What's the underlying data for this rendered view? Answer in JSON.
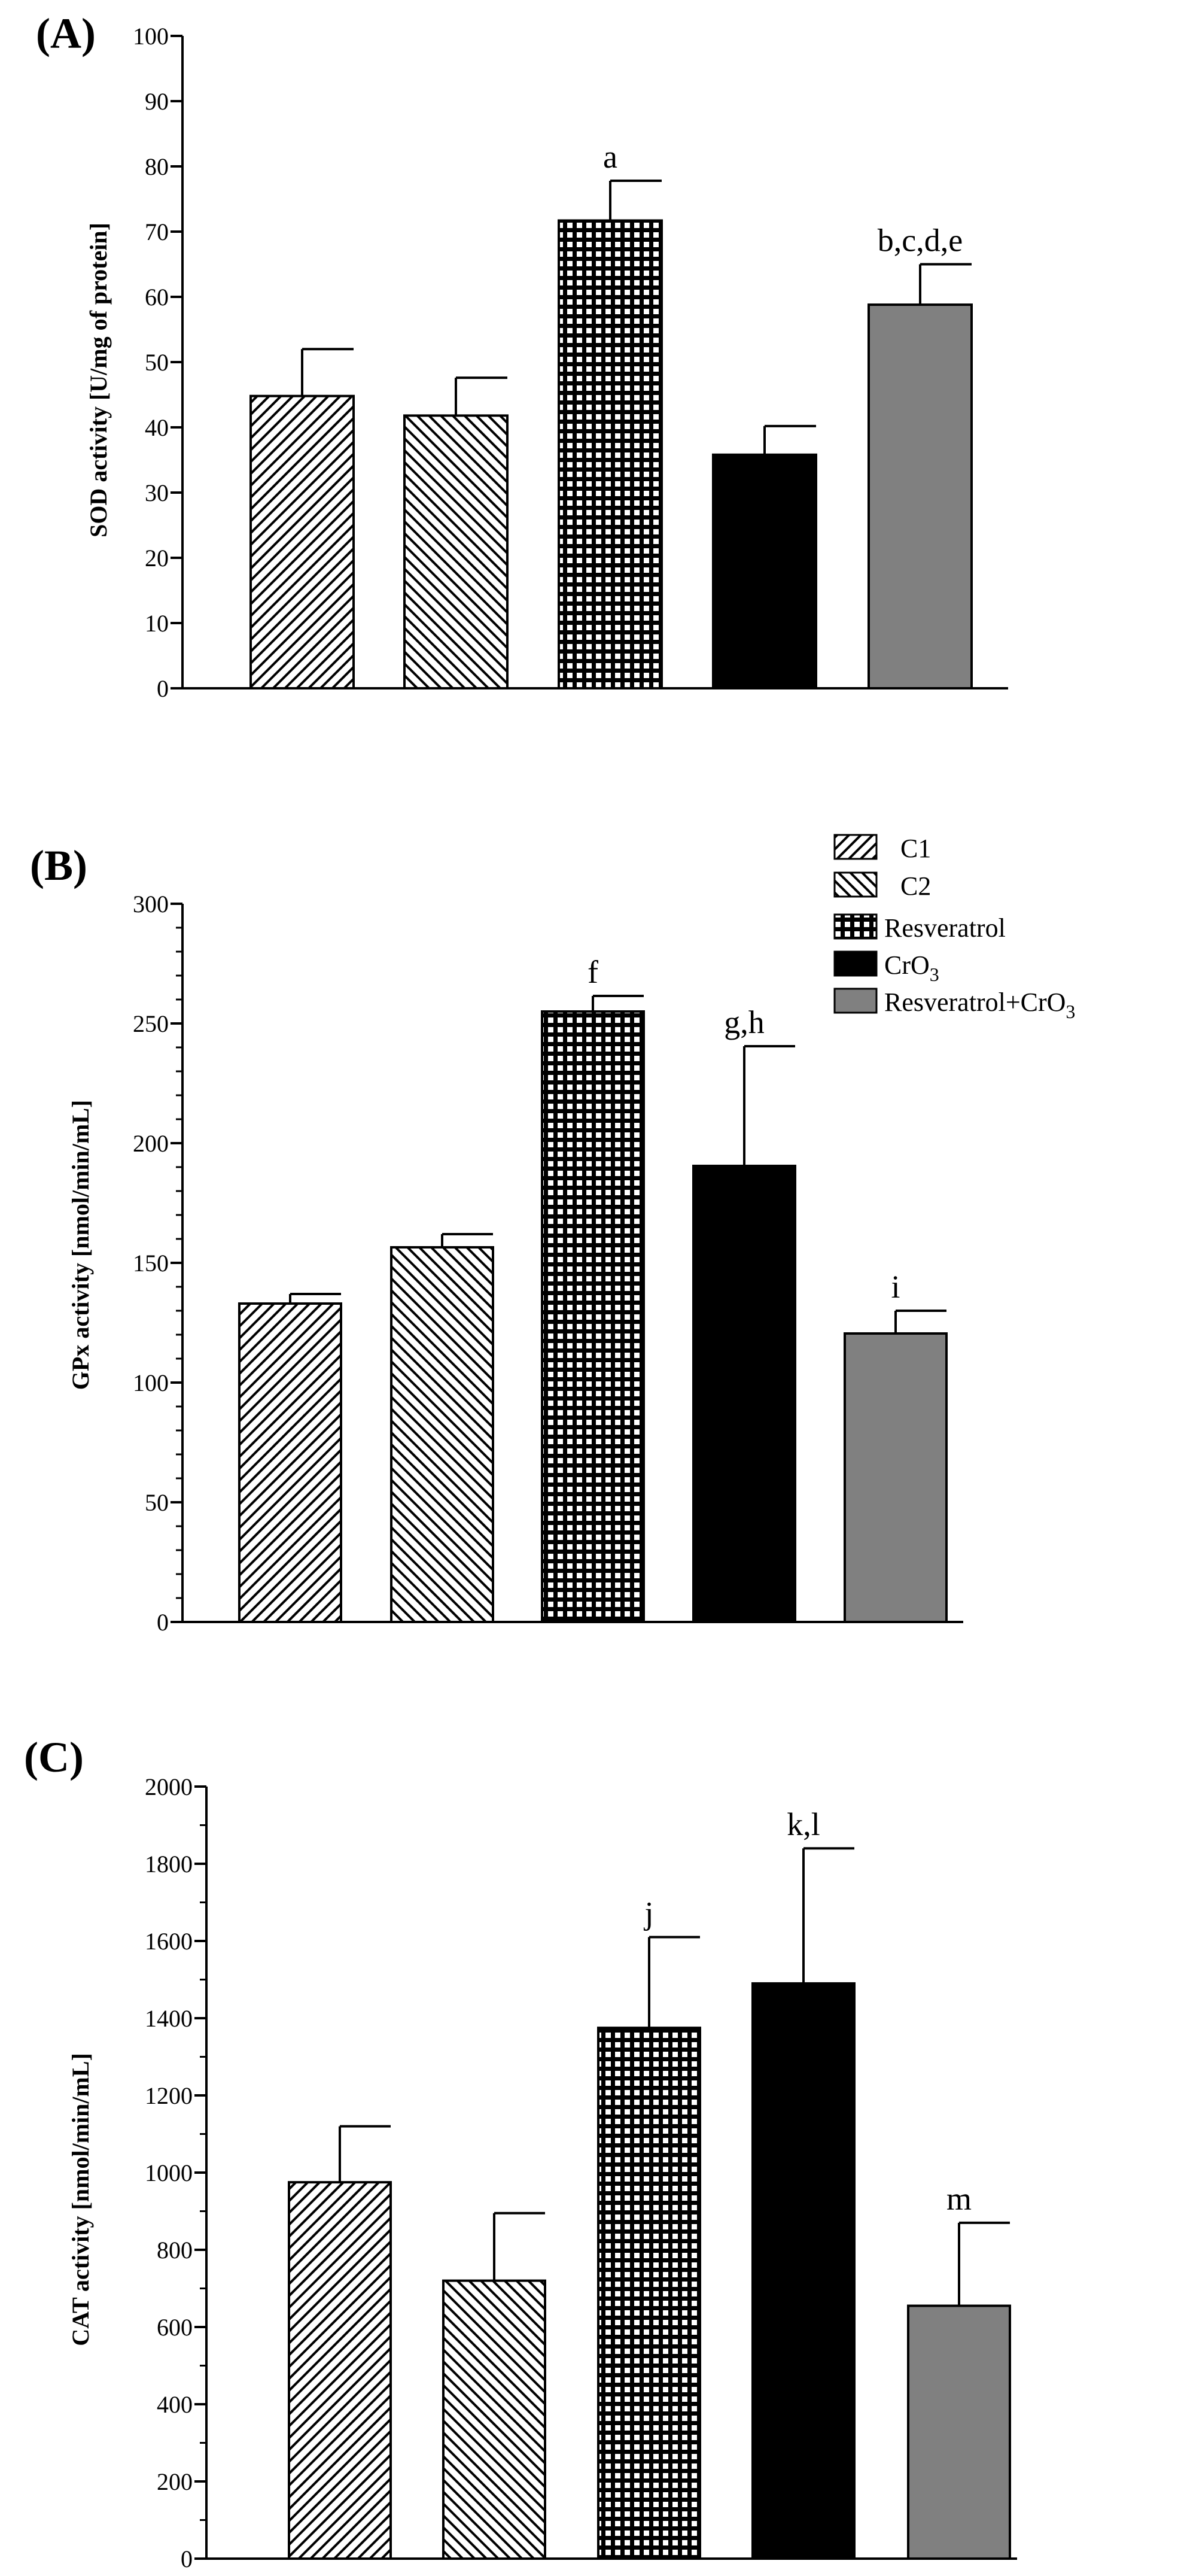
{
  "groups": [
    {
      "name": "C1",
      "pattern": "diag-right"
    },
    {
      "name": "C2",
      "pattern": "diag-left"
    },
    {
      "name": "Resveratrol",
      "pattern": "grid"
    },
    {
      "name": "CrO3",
      "name_base": "CrO",
      "name_sub": "3",
      "pattern": "solid-black"
    },
    {
      "name": "Resveratrol+CrO3",
      "name_base": "Resveratrol+CrO",
      "name_sub": "3",
      "pattern": "solid-gray"
    }
  ],
  "colors": {
    "black": "#000000",
    "gray": "#808080",
    "white": "#ffffff"
  },
  "chart_data": [
    {
      "panel": "(A)",
      "type": "bar",
      "categories": [
        "C1",
        "C2",
        "Resveratrol",
        "CrO3",
        "Resveratrol+CrO3"
      ],
      "values": [
        44.8,
        41.8,
        71.7,
        35.8,
        58.8
      ],
      "errors": [
        7.2,
        5.8,
        6.1,
        4.4,
        6.2
      ],
      "annotations": [
        "",
        "",
        "a",
        "",
        "b,c,d,e"
      ],
      "ylabel": "SOD activity [U/mg of protein]",
      "ylim": [
        0,
        100
      ],
      "yticks": [
        0,
        10,
        20,
        30,
        40,
        50,
        60,
        70,
        80,
        90,
        100
      ],
      "minor_ticks": 0,
      "legend": "none"
    },
    {
      "panel": "(B)",
      "type": "bar",
      "categories": [
        "C1",
        "C2",
        "Resveratrol",
        "CrO3",
        "Resveratrol+CrO3"
      ],
      "values": [
        133,
        156.5,
        255,
        190.5,
        120.5
      ],
      "errors": [
        4,
        5.5,
        6.5,
        50,
        9.5
      ],
      "annotations": [
        "",
        "",
        "f",
        "g,h",
        "i"
      ],
      "ylabel": "GPx activity [nmol/min/mL]",
      "ylim": [
        0,
        300
      ],
      "yticks": [
        0,
        50,
        100,
        150,
        200,
        250,
        300
      ],
      "minor_ticks": 4,
      "legend": "top-right"
    },
    {
      "panel": "(C)",
      "type": "bar",
      "categories": [
        "C1",
        "C2",
        "Resveratrol",
        "CrO3",
        "Resveratrol+CrO3"
      ],
      "values": [
        975,
        720,
        1375,
        1490,
        655
      ],
      "errors": [
        145,
        175,
        235,
        350,
        215
      ],
      "annotations": [
        "",
        "",
        "j",
        "k,l",
        "m"
      ],
      "ylabel": "CAT activity [nmol/min/mL]",
      "ylim": [
        0,
        2000
      ],
      "yticks": [
        0,
        200,
        400,
        600,
        800,
        1000,
        1200,
        1400,
        1600,
        1800,
        2000
      ],
      "minor_ticks": 1,
      "legend": "none"
    }
  ]
}
